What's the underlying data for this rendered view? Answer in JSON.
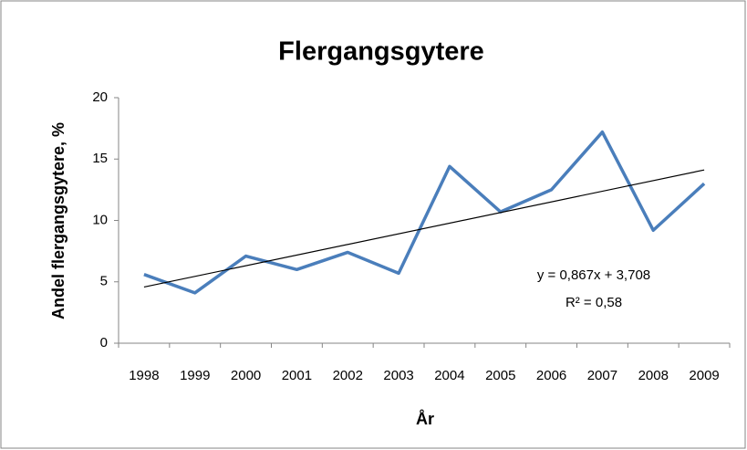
{
  "chart_data": {
    "type": "line",
    "title": "Flergangsgytere",
    "x_label": "År",
    "y_label": "Andel flergangsgytere, %",
    "categories": [
      "1998",
      "1999",
      "2000",
      "2001",
      "2002",
      "2003",
      "2004",
      "2005",
      "2006",
      "2007",
      "2008",
      "2009"
    ],
    "series": [
      {
        "name": "Flergangsgytere",
        "color": "#4a7ebb",
        "values": [
          5.6,
          4.1,
          7.1,
          6.0,
          7.4,
          5.7,
          14.4,
          10.7,
          12.5,
          17.2,
          9.2,
          13.0
        ]
      }
    ],
    "trendline": {
      "slope": 0.867,
      "intercept": 3.708,
      "equation": "y = 0,867x + 3,708",
      "r2": "R² = 0,58",
      "color": "#000000"
    },
    "ylim": [
      0,
      20
    ],
    "yticks": [
      0,
      5,
      10,
      15,
      20
    ],
    "grid": false
  }
}
